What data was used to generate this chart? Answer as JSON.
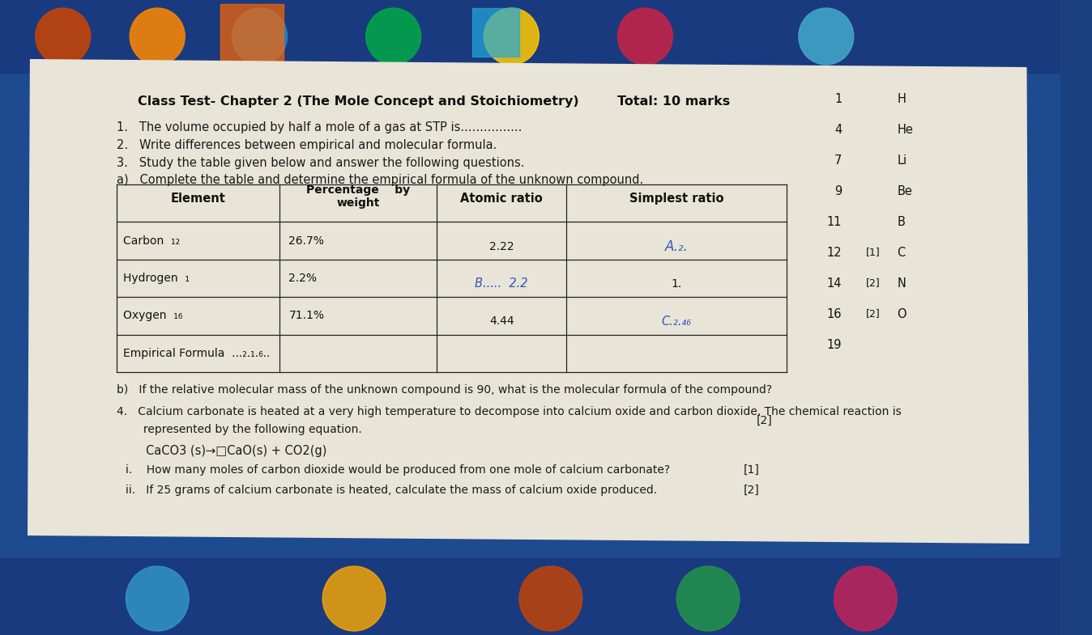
{
  "bg_color_top": "#1a4a8a",
  "bg_color_bottom": "#1a3a7a",
  "paper_color": "#e8e4d8",
  "title": "Class Test- Chapter 2 (The Mole Concept and Stoichiometry)",
  "total": "Total: 10 marks",
  "q1": "1.   The volume occupied by half a mole of a gas at STP is................",
  "q2": "2.   Write differences between empirical and molecular formula.",
  "q3": "3.   Study the table given below and answer the following questions.",
  "q3a": "a)   Complete the table and determine the empirical formula of the unknown compound.",
  "q3b": "b)   If the relative molecular mass of the unknown compound is 90, what is the molecular formula of the compound?",
  "q4_line1": "4.   Calcium carbonate is heated at a very high temperature to decompose into calcium oxide and carbon dioxide. The chemical reaction is",
  "q4_line2": "     represented by the following equation.",
  "q4_marks": "[2]",
  "equation": "CaCO3 (s)→□CaO(s) + CO2(g)",
  "qi": "i.    How many moles of carbon dioxide would be produced from one mole of calcium carbonate?",
  "qii": "ii.   If 25 grams of calcium carbonate is heated, calculate the mass of calcium oxide produced.",
  "marks_i": "[1]",
  "marks_ii": "[2]",
  "text_color": "#2a2a2a",
  "table_border_color": "#222222",
  "handwriting_color": "#3355bb",
  "sidebar": [
    {
      "num": "1",
      "sym": "H",
      "mark": ""
    },
    {
      "num": "4",
      "sym": "He",
      "mark": ""
    },
    {
      "num": "7",
      "sym": "Li",
      "mark": ""
    },
    {
      "num": "9",
      "sym": "Be",
      "mark": ""
    },
    {
      "num": "11",
      "sym": "B",
      "mark": ""
    },
    {
      "num": "12",
      "sym": "C",
      "mark": "[1]"
    },
    {
      "num": "14",
      "sym": "N",
      "mark": "[2]"
    },
    {
      "num": "16",
      "sym": "O",
      "mark": "[2]"
    },
    {
      "num": "19",
      "sym": "",
      "mark": ""
    }
  ]
}
